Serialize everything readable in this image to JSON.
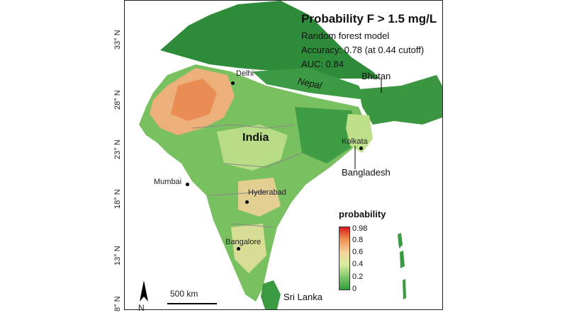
{
  "title": "Probability F > 1.5 mg/L",
  "model_lines": [
    "Random forest model",
    "Accuracy: 0.78 (at 0.44 cutoff)",
    "AUC: 0.84"
  ],
  "latitudes": [
    "33° N",
    "28° N",
    "23° N",
    "18° N",
    "13° N",
    "8° N"
  ],
  "countries": {
    "india": "India",
    "nepal": "Nepal",
    "bhutan": "Bhutan",
    "bangladesh": "Bangladesh",
    "sri_lanka": "Sri Lanka"
  },
  "cities": {
    "delhi": "Delhi",
    "kolkata": "Kolkata",
    "mumbai": "Mumbai",
    "hyderabad": "Hyderabad",
    "bangalore": "Bangalore"
  },
  "legend": {
    "title": "probability",
    "ticks": [
      "0.98",
      "0.8",
      "0.6",
      "0.4",
      "0.2",
      "0"
    ]
  },
  "scale_bar": "500 km",
  "north": "N",
  "colors": {
    "high": "#d7191c",
    "mid": "#f4d39a",
    "low": "#2e9e3a"
  }
}
